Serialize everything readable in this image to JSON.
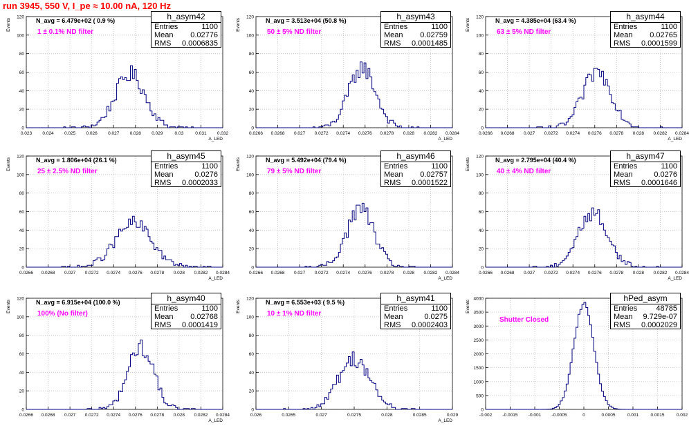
{
  "title": "run 3945,   550 V, I_pe ≈ 10.00 nA, 120 Hz",
  "hist_line_color": "#000080",
  "grid_color": "#bdbdbd",
  "label_color": "#ff00ff",
  "title_color": "#ff0000",
  "chart_data": [
    {
      "type": "histogram",
      "name": "h_asym42",
      "ylabel": "Events",
      "xlabel": "A_LED",
      "navg": "N_avg = 6.479e+02 ( 0.9 %)",
      "filter_label": "1 ± 0.1% ND filter",
      "stats": {
        "entries": "1100",
        "mean": "0.02776",
        "rms": "0.0006835"
      },
      "xlim": [
        0.023,
        0.032
      ],
      "ylim": [
        0,
        120
      ],
      "xticks": [
        "0.023",
        "0.024",
        "0.025",
        "0.026",
        "0.027",
        "0.028",
        "0.029",
        "0.03",
        "0.031",
        "0.032"
      ],
      "yticks": [
        "0",
        "20",
        "40",
        "60",
        "80",
        "100",
        "120"
      ],
      "dist": {
        "mean": 0.02776,
        "rms": 0.0006835,
        "entries": 1100,
        "bin": 9e-05
      }
    },
    {
      "type": "histogram",
      "name": "h_asym43",
      "ylabel": "Events",
      "xlabel": "A_LED",
      "navg": "N_avg = 3.513e+04 (50.8 %)",
      "filter_label": "50 ± 5% ND filter",
      "stats": {
        "entries": "1100",
        "mean": "0.02759",
        "rms": "0.0001485"
      },
      "xlim": [
        0.0264,
        0.0286
      ],
      "ylim": [
        0,
        120
      ],
      "xticks": [
        "0.0266",
        "0.0268",
        "0.027",
        "0.0272",
        "0.0274",
        "0.0276",
        "0.0278",
        "0.028",
        "0.0282",
        "0.0284"
      ],
      "yticks": [
        "0",
        "20",
        "40",
        "60",
        "80",
        "100",
        "120"
      ],
      "dist": {
        "mean": 0.02759,
        "rms": 0.0001485,
        "entries": 1100,
        "bin": 2.2e-05
      }
    },
    {
      "type": "histogram",
      "name": "h_asym44",
      "ylabel": "Events",
      "xlabel": "A_LED",
      "navg": "N_avg = 4.385e+04 (63.4 %)",
      "filter_label": "63 ± 5% ND filter",
      "stats": {
        "entries": "1100",
        "mean": "0.02765",
        "rms": "0.0001599"
      },
      "xlim": [
        0.0264,
        0.0286
      ],
      "ylim": [
        0,
        120
      ],
      "xticks": [
        "0.0266",
        "0.0268",
        "0.027",
        "0.0272",
        "0.0274",
        "0.0276",
        "0.0278",
        "0.028",
        "0.0282",
        "0.0284"
      ],
      "yticks": [
        "0",
        "20",
        "40",
        "60",
        "80",
        "100",
        "120"
      ],
      "dist": {
        "mean": 0.02765,
        "rms": 0.0001599,
        "entries": 1100,
        "bin": 2.2e-05
      }
    },
    {
      "type": "histogram",
      "name": "h_asym45",
      "ylabel": "Events",
      "xlabel": "A_LED",
      "navg": "N_avg = 1.806e+04 (26.1 %)",
      "filter_label": "25 ± 2.5% ND filter",
      "stats": {
        "entries": "1100",
        "mean": "0.0276",
        "rms": "0.0002033"
      },
      "xlim": [
        0.0264,
        0.0286
      ],
      "ylim": [
        0,
        120
      ],
      "xticks": [
        "0.0266",
        "0.0268",
        "0.027",
        "0.0272",
        "0.0274",
        "0.0276",
        "0.0278",
        "0.028",
        "0.0282",
        "0.0284"
      ],
      "yticks": [
        "0",
        "20",
        "40",
        "60",
        "80",
        "100",
        "120"
      ],
      "dist": {
        "mean": 0.0276,
        "rms": 0.0002033,
        "entries": 1100,
        "bin": 2.2e-05
      }
    },
    {
      "type": "histogram",
      "name": "h_asym46",
      "ylabel": "Events",
      "xlabel": "A_LED",
      "navg": "N_avg = 5.492e+04 (79.4 %)",
      "filter_label": "79 ± 5% ND filter",
      "stats": {
        "entries": "1100",
        "mean": "0.02757",
        "rms": "0.0001522"
      },
      "xlim": [
        0.0264,
        0.0286
      ],
      "ylim": [
        0,
        120
      ],
      "xticks": [
        "0.0266",
        "0.0268",
        "0.027",
        "0.0272",
        "0.0274",
        "0.0276",
        "0.0278",
        "0.028",
        "0.0282",
        "0.0284"
      ],
      "yticks": [
        "0",
        "20",
        "40",
        "60",
        "80",
        "100",
        "120"
      ],
      "dist": {
        "mean": 0.02757,
        "rms": 0.0001522,
        "entries": 1100,
        "bin": 2.2e-05
      }
    },
    {
      "type": "histogram",
      "name": "h_asym47",
      "ylabel": "Events",
      "xlabel": "A_LED",
      "navg": "N_avg = 2.795e+04 (40.4 %)",
      "filter_label": "40 ± 4% ND filter",
      "stats": {
        "entries": "1100",
        "mean": "0.0276",
        "rms": "0.0001646"
      },
      "xlim": [
        0.0264,
        0.0286
      ],
      "ylim": [
        0,
        120
      ],
      "xticks": [
        "0.0266",
        "0.0268",
        "0.027",
        "0.0272",
        "0.0274",
        "0.0276",
        "0.0278",
        "0.028",
        "0.0282",
        "0.0284"
      ],
      "yticks": [
        "0",
        "20",
        "40",
        "60",
        "80",
        "100",
        "120"
      ],
      "dist": {
        "mean": 0.0276,
        "rms": 0.0001646,
        "entries": 1100,
        "bin": 2.2e-05
      }
    },
    {
      "type": "histogram",
      "name": "h_asym40",
      "ylabel": "Events",
      "xlabel": "A_LED",
      "navg": "N_avg = 6.915e+04 (100.0 %)",
      "filter_label": "100% (No filter)",
      "stats": {
        "entries": "1100",
        "mean": "0.02768",
        "rms": "0.0001419"
      },
      "xlim": [
        0.0264,
        0.0286
      ],
      "ylim": [
        0,
        120
      ],
      "xticks": [
        "0.0266",
        "0.0268",
        "0.027",
        "0.0272",
        "0.0274",
        "0.0276",
        "0.0278",
        "0.028",
        "0.0282",
        "0.0284"
      ],
      "yticks": [
        "0",
        "20",
        "40",
        "60",
        "80",
        "100",
        "120"
      ],
      "dist": {
        "mean": 0.02768,
        "rms": 0.0001419,
        "entries": 1100,
        "bin": 2.2e-05
      }
    },
    {
      "type": "histogram",
      "name": "h_asym41",
      "ylabel": "Events",
      "xlabel": "A_LED",
      "navg": "N_avg = 6.553e+03 ( 9.5 %)",
      "filter_label": "10 ± 1% ND filter",
      "stats": {
        "entries": "1100",
        "mean": "0.0275",
        "rms": "0.0002403"
      },
      "xlim": [
        0.026,
        0.029
      ],
      "ylim": [
        0,
        120
      ],
      "xticks": [
        "0.026",
        "0.0265",
        "0.027",
        "0.0275",
        "0.028",
        "0.0285",
        "0.029"
      ],
      "yticks": [
        "0",
        "20",
        "40",
        "60",
        "80",
        "100",
        "120"
      ],
      "dist": {
        "mean": 0.0275,
        "rms": 0.0002403,
        "entries": 1100,
        "bin": 3e-05
      }
    },
    {
      "type": "histogram",
      "name": "hPed_asym",
      "ylabel": "Events",
      "xlabel": "",
      "navg": "",
      "filter_label": "Shutter Closed",
      "stats": {
        "entries": "48785",
        "mean": "9.729e-07",
        "rms": "0.0002029"
      },
      "xlim": [
        -0.002,
        0.002
      ],
      "ylim": [
        0,
        4000
      ],
      "xticks": [
        "-0.002",
        "-0.0015",
        "-0.001",
        "-0.0005",
        "0",
        "0.0005",
        "0.001",
        "0.0015",
        "0.002"
      ],
      "yticks": [
        "0",
        "500",
        "1000",
        "1500",
        "2000",
        "2500",
        "3000",
        "3500",
        "4000"
      ],
      "dist": {
        "mean": 1e-06,
        "rms": 0.0002029,
        "entries": 48785,
        "bin": 4e-05
      }
    }
  ]
}
